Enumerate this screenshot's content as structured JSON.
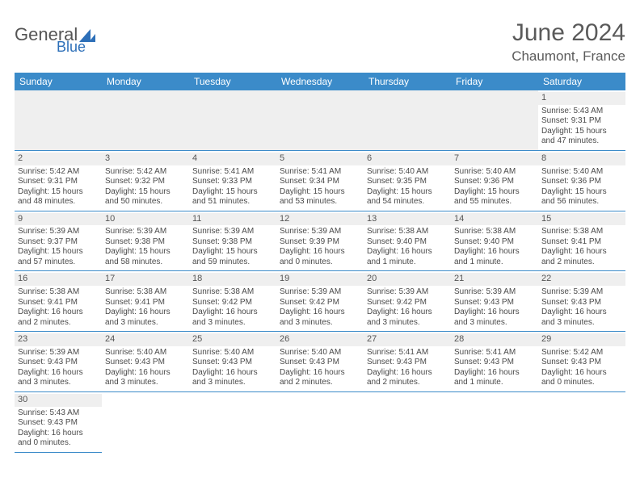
{
  "brand": {
    "part1": "General",
    "part2": "Blue"
  },
  "header": {
    "month_year": "June 2024",
    "location": "Chaumont, France"
  },
  "palette": {
    "header_bg": "#3b8bc9",
    "header_text": "#ffffff",
    "daynum_bg": "#efefef",
    "border": "#3b8bc9",
    "text": "#4a4a4a",
    "title_text": "#5a5a5a",
    "brand_blue": "#2d6fb8"
  },
  "fonts": {
    "title_pt": 30,
    "location_pt": 17,
    "header_cell_pt": 12,
    "body_pt": 10,
    "daynum_pt": 11
  },
  "weekdays": [
    "Sunday",
    "Monday",
    "Tuesday",
    "Wednesday",
    "Thursday",
    "Friday",
    "Saturday"
  ],
  "leading_blanks": 6,
  "days": [
    {
      "n": 1,
      "sunrise": "5:43 AM",
      "sunset": "9:31 PM",
      "daylight": "15 hours and 47 minutes."
    },
    {
      "n": 2,
      "sunrise": "5:42 AM",
      "sunset": "9:31 PM",
      "daylight": "15 hours and 48 minutes."
    },
    {
      "n": 3,
      "sunrise": "5:42 AM",
      "sunset": "9:32 PM",
      "daylight": "15 hours and 50 minutes."
    },
    {
      "n": 4,
      "sunrise": "5:41 AM",
      "sunset": "9:33 PM",
      "daylight": "15 hours and 51 minutes."
    },
    {
      "n": 5,
      "sunrise": "5:41 AM",
      "sunset": "9:34 PM",
      "daylight": "15 hours and 53 minutes."
    },
    {
      "n": 6,
      "sunrise": "5:40 AM",
      "sunset": "9:35 PM",
      "daylight": "15 hours and 54 minutes."
    },
    {
      "n": 7,
      "sunrise": "5:40 AM",
      "sunset": "9:36 PM",
      "daylight": "15 hours and 55 minutes."
    },
    {
      "n": 8,
      "sunrise": "5:40 AM",
      "sunset": "9:36 PM",
      "daylight": "15 hours and 56 minutes."
    },
    {
      "n": 9,
      "sunrise": "5:39 AM",
      "sunset": "9:37 PM",
      "daylight": "15 hours and 57 minutes."
    },
    {
      "n": 10,
      "sunrise": "5:39 AM",
      "sunset": "9:38 PM",
      "daylight": "15 hours and 58 minutes."
    },
    {
      "n": 11,
      "sunrise": "5:39 AM",
      "sunset": "9:38 PM",
      "daylight": "15 hours and 59 minutes."
    },
    {
      "n": 12,
      "sunrise": "5:39 AM",
      "sunset": "9:39 PM",
      "daylight": "16 hours and 0 minutes."
    },
    {
      "n": 13,
      "sunrise": "5:38 AM",
      "sunset": "9:40 PM",
      "daylight": "16 hours and 1 minute."
    },
    {
      "n": 14,
      "sunrise": "5:38 AM",
      "sunset": "9:40 PM",
      "daylight": "16 hours and 1 minute."
    },
    {
      "n": 15,
      "sunrise": "5:38 AM",
      "sunset": "9:41 PM",
      "daylight": "16 hours and 2 minutes."
    },
    {
      "n": 16,
      "sunrise": "5:38 AM",
      "sunset": "9:41 PM",
      "daylight": "16 hours and 2 minutes."
    },
    {
      "n": 17,
      "sunrise": "5:38 AM",
      "sunset": "9:41 PM",
      "daylight": "16 hours and 3 minutes."
    },
    {
      "n": 18,
      "sunrise": "5:38 AM",
      "sunset": "9:42 PM",
      "daylight": "16 hours and 3 minutes."
    },
    {
      "n": 19,
      "sunrise": "5:39 AM",
      "sunset": "9:42 PM",
      "daylight": "16 hours and 3 minutes."
    },
    {
      "n": 20,
      "sunrise": "5:39 AM",
      "sunset": "9:42 PM",
      "daylight": "16 hours and 3 minutes."
    },
    {
      "n": 21,
      "sunrise": "5:39 AM",
      "sunset": "9:43 PM",
      "daylight": "16 hours and 3 minutes."
    },
    {
      "n": 22,
      "sunrise": "5:39 AM",
      "sunset": "9:43 PM",
      "daylight": "16 hours and 3 minutes."
    },
    {
      "n": 23,
      "sunrise": "5:39 AM",
      "sunset": "9:43 PM",
      "daylight": "16 hours and 3 minutes."
    },
    {
      "n": 24,
      "sunrise": "5:40 AM",
      "sunset": "9:43 PM",
      "daylight": "16 hours and 3 minutes."
    },
    {
      "n": 25,
      "sunrise": "5:40 AM",
      "sunset": "9:43 PM",
      "daylight": "16 hours and 3 minutes."
    },
    {
      "n": 26,
      "sunrise": "5:40 AM",
      "sunset": "9:43 PM",
      "daylight": "16 hours and 2 minutes."
    },
    {
      "n": 27,
      "sunrise": "5:41 AM",
      "sunset": "9:43 PM",
      "daylight": "16 hours and 2 minutes."
    },
    {
      "n": 28,
      "sunrise": "5:41 AM",
      "sunset": "9:43 PM",
      "daylight": "16 hours and 1 minute."
    },
    {
      "n": 29,
      "sunrise": "5:42 AM",
      "sunset": "9:43 PM",
      "daylight": "16 hours and 0 minutes."
    },
    {
      "n": 30,
      "sunrise": "5:43 AM",
      "sunset": "9:43 PM",
      "daylight": "16 hours and 0 minutes."
    }
  ],
  "labels": {
    "sunrise": "Sunrise:",
    "sunset": "Sunset:",
    "daylight": "Daylight:"
  }
}
